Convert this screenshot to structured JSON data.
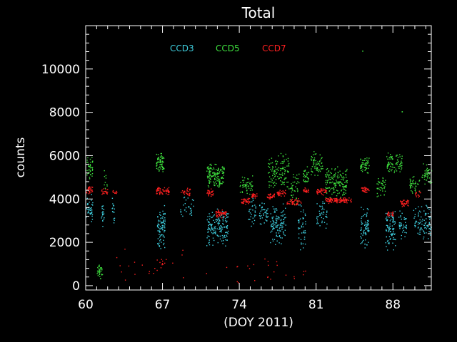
{
  "chart_data": {
    "type": "scatter",
    "title": "Total",
    "xlabel": "(DOY 2011)",
    "ylabel": "counts",
    "xlim": [
      60,
      91.5
    ],
    "ylim": [
      -200,
      12000
    ],
    "xticks": [
      60,
      67,
      74,
      81,
      88
    ],
    "xtick_labels": [
      "60",
      "67",
      "74",
      "81",
      "88"
    ],
    "yticks": [
      0,
      2000,
      4000,
      6000,
      8000,
      10000
    ],
    "ytick_labels": [
      "0",
      "2000",
      "4000",
      "6000",
      "8000",
      "10000"
    ],
    "legend_placement": "top-left, inside plot",
    "grid": false,
    "series": [
      {
        "name": "CCD3",
        "color": "#3fd0e0",
        "clusters": [
          {
            "x": [
              60.0,
              60.6
            ],
            "y": [
              2700,
              4400
            ],
            "n": 40
          },
          {
            "x": [
              61.4,
              61.7
            ],
            "y": [
              2600,
              4000
            ],
            "n": 20
          },
          {
            "x": [
              62.3,
              62.6
            ],
            "y": [
              2800,
              4300
            ],
            "n": 15
          },
          {
            "x": [
              66.5,
              67.2
            ],
            "y": [
              1600,
              3800
            ],
            "n": 90
          },
          {
            "x": [
              68.6,
              69.8
            ],
            "y": [
              3000,
              4300
            ],
            "n": 30
          },
          {
            "x": [
              71.0,
              73.0
            ],
            "y": [
              1800,
              3600
            ],
            "n": 150
          },
          {
            "x": [
              74.8,
              75.5
            ],
            "y": [
              2600,
              4200
            ],
            "n": 30
          },
          {
            "x": [
              75.8,
              76.6
            ],
            "y": [
              2800,
              4000
            ],
            "n": 40
          },
          {
            "x": [
              76.8,
              78.2
            ],
            "y": [
              1800,
              3900
            ],
            "n": 110
          },
          {
            "x": [
              79.3,
              80.0
            ],
            "y": [
              1500,
              4000
            ],
            "n": 45
          },
          {
            "x": [
              81.0,
              82.0
            ],
            "y": [
              2600,
              4000
            ],
            "n": 40
          },
          {
            "x": [
              85.0,
              85.8
            ],
            "y": [
              1700,
              3800
            ],
            "n": 70
          },
          {
            "x": [
              87.3,
              88.2
            ],
            "y": [
              1600,
              3600
            ],
            "n": 90
          },
          {
            "x": [
              88.5,
              89.2
            ],
            "y": [
              2000,
              3500
            ],
            "n": 40
          },
          {
            "x": [
              89.8,
              91.5
            ],
            "y": [
              2000,
              3800
            ],
            "n": 90
          }
        ]
      },
      {
        "name": "CCD5",
        "color": "#3ee03e",
        "clusters": [
          {
            "x": [
              60.0,
              60.6
            ],
            "y": [
              4800,
              6000
            ],
            "n": 40
          },
          {
            "x": [
              61.0,
              61.5
            ],
            "y": [
              300,
              1100
            ],
            "n": 30
          },
          {
            "x": [
              61.6,
              62.0
            ],
            "y": [
              4200,
              5500
            ],
            "n": 10
          },
          {
            "x": [
              66.4,
              67.1
            ],
            "y": [
              5200,
              6200
            ],
            "n": 70
          },
          {
            "x": [
              71.0,
              72.6
            ],
            "y": [
              4500,
              5700
            ],
            "n": 140
          },
          {
            "x": [
              74.0,
              75.2
            ],
            "y": [
              4100,
              5200
            ],
            "n": 50
          },
          {
            "x": [
              76.6,
              78.5
            ],
            "y": [
              4400,
              6200
            ],
            "n": 120
          },
          {
            "x": [
              78.6,
              79.4
            ],
            "y": [
              3600,
              5400
            ],
            "n": 40
          },
          {
            "x": [
              79.8,
              80.3
            ],
            "y": [
              4600,
              5600
            ],
            "n": 30
          },
          {
            "x": [
              80.5,
              81.6
            ],
            "y": [
              5000,
              6300
            ],
            "n": 60
          },
          {
            "x": [
              81.8,
              83.8
            ],
            "y": [
              3900,
              5600
            ],
            "n": 160
          },
          {
            "x": [
              85.0,
              85.8
            ],
            "y": [
              5100,
              6100
            ],
            "n": 50
          },
          {
            "x": [
              86.5,
              87.3
            ],
            "y": [
              4000,
              5200
            ],
            "n": 40
          },
          {
            "x": [
              87.4,
              88.8
            ],
            "y": [
              5100,
              6200
            ],
            "n": 80
          },
          {
            "x": [
              89.5,
              90.4
            ],
            "y": [
              4200,
              5200
            ],
            "n": 40
          },
          {
            "x": [
              90.6,
              91.5
            ],
            "y": [
              4600,
              5700
            ],
            "n": 45
          }
        ]
      },
      {
        "name": "CCD7",
        "color": "#ff2020",
        "clusters": [
          {
            "x": [
              60.0,
              60.6
            ],
            "y": [
              4250,
              4600
            ],
            "n": 30
          },
          {
            "x": [
              61.4,
              62.0
            ],
            "y": [
              4150,
              4500
            ],
            "n": 20
          },
          {
            "x": [
              62.4,
              62.8
            ],
            "y": [
              4200,
              4450
            ],
            "n": 10
          },
          {
            "x": [
              66.4,
              67.6
            ],
            "y": [
              4200,
              4600
            ],
            "n": 60
          },
          {
            "x": [
              68.6,
              69.5
            ],
            "y": [
              4150,
              4550
            ],
            "n": 30
          },
          {
            "x": [
              71.0,
              71.6
            ],
            "y": [
              4100,
              4500
            ],
            "n": 30
          },
          {
            "x": [
              71.8,
              72.8
            ],
            "y": [
              3150,
              3550
            ],
            "n": 50
          },
          {
            "x": [
              74.1,
              74.9
            ],
            "y": [
              3750,
              4100
            ],
            "n": 40
          },
          {
            "x": [
              75.1,
              75.6
            ],
            "y": [
              4050,
              4350
            ],
            "n": 25
          },
          {
            "x": [
              76.5,
              77.2
            ],
            "y": [
              4000,
              4300
            ],
            "n": 30
          },
          {
            "x": [
              77.4,
              78.2
            ],
            "y": [
              4100,
              4450
            ],
            "n": 35
          },
          {
            "x": [
              78.3,
              79.6
            ],
            "y": [
              3700,
              4050
            ],
            "n": 50
          },
          {
            "x": [
              79.8,
              80.3
            ],
            "y": [
              4250,
              4550
            ],
            "n": 25
          },
          {
            "x": [
              81.0,
              81.9
            ],
            "y": [
              4200,
              4550
            ],
            "n": 45
          },
          {
            "x": [
              81.8,
              84.2
            ],
            "y": [
              3800,
              4100
            ],
            "n": 120
          },
          {
            "x": [
              85.1,
              85.8
            ],
            "y": [
              4250,
              4600
            ],
            "n": 35
          },
          {
            "x": [
              87.4,
              88.0
            ],
            "y": [
              3200,
              3450
            ],
            "n": 20
          },
          {
            "x": [
              88.6,
              89.4
            ],
            "y": [
              3650,
              4000
            ],
            "n": 35
          },
          {
            "x": [
              90.0,
              90.5
            ],
            "y": [
              4100,
              4400
            ],
            "n": 15
          },
          {
            "x": [
              66.7,
              67.3
            ],
            "y": [
              900,
              1400
            ],
            "n": 8
          },
          {
            "x": [
              62.5,
              69.5
            ],
            "y": [
              0,
              1800
            ],
            "n": 20
          },
          {
            "x": [
              70.5,
              80.0
            ],
            "y": [
              0,
              1500
            ],
            "n": 25
          }
        ]
      }
    ],
    "outliers": [
      {
        "x": 85.2,
        "y": 10850,
        "series": "CCD5"
      },
      {
        "x": 88.8,
        "y": 8050,
        "series": "CCD5"
      }
    ]
  }
}
